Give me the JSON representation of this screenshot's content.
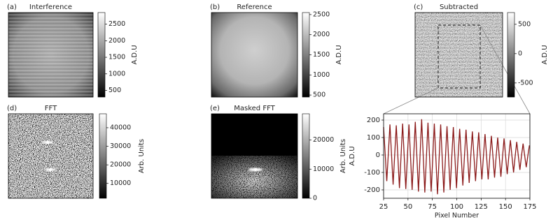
{
  "chart_data": [
    {
      "type": "image",
      "panel": "(a)",
      "title": "Interference",
      "colorbar_label": "A.D.U",
      "clim": [
        300,
        2850
      ],
      "cticks": [
        500,
        1000,
        1500,
        2000,
        2500
      ],
      "cmap": "gray"
    },
    {
      "type": "image",
      "panel": "(b)",
      "title": "Reference",
      "colorbar_label": "A.D.U",
      "clim": [
        450,
        2550
      ],
      "cticks": [
        500,
        1000,
        1500,
        2000,
        2500
      ],
      "cmap": "gray"
    },
    {
      "type": "image",
      "panel": "(c)",
      "title": "Subtracted",
      "colorbar_label": "A.D.U",
      "clim": [
        -740,
        700
      ],
      "cticks": [
        -500,
        0,
        500
      ],
      "cmap": "gray"
    },
    {
      "type": "image",
      "panel": "(d)",
      "title": "FFT",
      "colorbar_label": "Arb. Units",
      "clim": [
        2000,
        47500
      ],
      "cticks": [
        10000,
        20000,
        30000,
        40000
      ],
      "cmap": "gray"
    },
    {
      "type": "image",
      "panel": "(e)",
      "title": "Masked FFT",
      "colorbar_label": "Arb. Units",
      "clim": [
        0,
        29000
      ],
      "cticks": [
        0,
        10000,
        20000
      ],
      "cmap": "gray"
    },
    {
      "type": "line",
      "xlabel": "Pixel Number",
      "ylabel": "A.D.U",
      "grid": true,
      "xlim": [
        25,
        175
      ],
      "ylim": [
        -248,
        236
      ],
      "xticks": [
        25,
        50,
        75,
        100,
        125,
        150,
        175
      ],
      "yticks": [
        -200,
        -100,
        0,
        100,
        200
      ],
      "x": [
        25,
        26.625,
        28.25,
        29.875,
        31.5,
        33.125,
        34.75,
        36.375,
        38,
        39.625,
        41.25,
        42.875,
        44.5,
        46.125,
        47.75,
        49.375,
        51,
        52.625,
        54.25,
        55.875,
        57.5,
        59.125,
        60.75,
        62.375,
        64,
        65.625,
        67.25,
        68.875,
        70.5,
        72.125,
        73.75,
        75.375,
        77,
        78.625,
        80.25,
        81.875,
        83.5,
        85.125,
        86.75,
        88.375,
        90,
        91.625,
        93.25,
        94.875,
        96.5,
        98.125,
        99.75,
        101.375,
        103,
        104.625,
        106.25,
        107.875,
        109.5,
        111.125,
        112.75,
        114.375,
        116,
        117.625,
        119.25,
        120.875,
        122.5,
        124.125,
        125.75,
        127.375,
        129,
        130.625,
        132.25,
        133.875,
        135.5,
        137.125,
        138.75,
        140.375,
        142,
        143.625,
        145.25,
        146.875,
        148.5,
        150.125,
        151.75,
        153.375,
        155,
        156.625,
        158.25,
        159.875,
        161.5,
        163.125,
        164.75,
        166.375,
        168,
        169.625,
        171.25,
        172.875,
        174.5
      ],
      "series": [
        {
          "color": "#8b1a1a",
          "values": [
            160,
            5,
            -150,
            10,
            175,
            2,
            -170,
            0,
            170,
            -10,
            -190,
            -8,
            180,
            -7,
            -195,
            -10,
            175,
            -12,
            -200,
            -5,
            190,
            -10,
            -210,
            -3,
            205,
            -5,
            -215,
            -15,
            185,
            -12,
            -210,
            -20,
            180,
            -22,
            -225,
            -25,
            175,
            -20,
            -215,
            -20,
            165,
            -18,
            -200,
            -15,
            160,
            -15,
            -190,
            -12,
            150,
            -12,
            -175,
            -10,
            145,
            -8,
            -160,
            -8,
            135,
            -7,
            -150,
            -8,
            130,
            -5,
            -140,
            -5,
            120,
            -10,
            -140,
            -10,
            110,
            -10,
            -130,
            -10,
            100,
            -12,
            -125,
            -15,
            95,
            -8,
            -110,
            -8,
            85,
            -8,
            -100,
            -8,
            75,
            -5,
            -85,
            -5,
            65,
            -3,
            -70,
            -5,
            55
          ]
        }
      ]
    }
  ]
}
